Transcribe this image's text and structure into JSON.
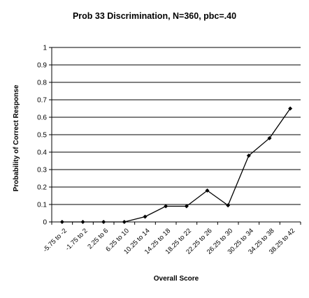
{
  "chart_data": {
    "type": "line",
    "title": "Prob 33 Discrimination, N=360, pbc=.40",
    "xlabel": "Overall Score",
    "ylabel": "Probability of Correct Response",
    "categories": [
      "-5.75 to -2",
      "-1.75 to 2",
      "2.25 to 6",
      "6.25 to 10",
      "10.25 to 14",
      "14.25 to 18",
      "18.25 to 22",
      "22.25 to 26",
      "26.25 to 30",
      "30.25 to 34",
      "34.25 to 38",
      "38.25 to 42"
    ],
    "series": [
      {
        "values": [
          0,
          0,
          0,
          0,
          0.03,
          0.09,
          0.09,
          0.18,
          0.095,
          0.38,
          0.48,
          0.65
        ]
      }
    ],
    "ylim": [
      0,
      1
    ],
    "yticks": [
      "0",
      "0.1",
      "0.2",
      "0.3",
      "0.4",
      "0.5",
      "0.6",
      "0.7",
      "0.8",
      "0.9",
      "1"
    ],
    "grid": true,
    "legend": "none",
    "colors": {
      "line": "#000000",
      "grid": "#000000",
      "background": "#ffffff"
    }
  }
}
